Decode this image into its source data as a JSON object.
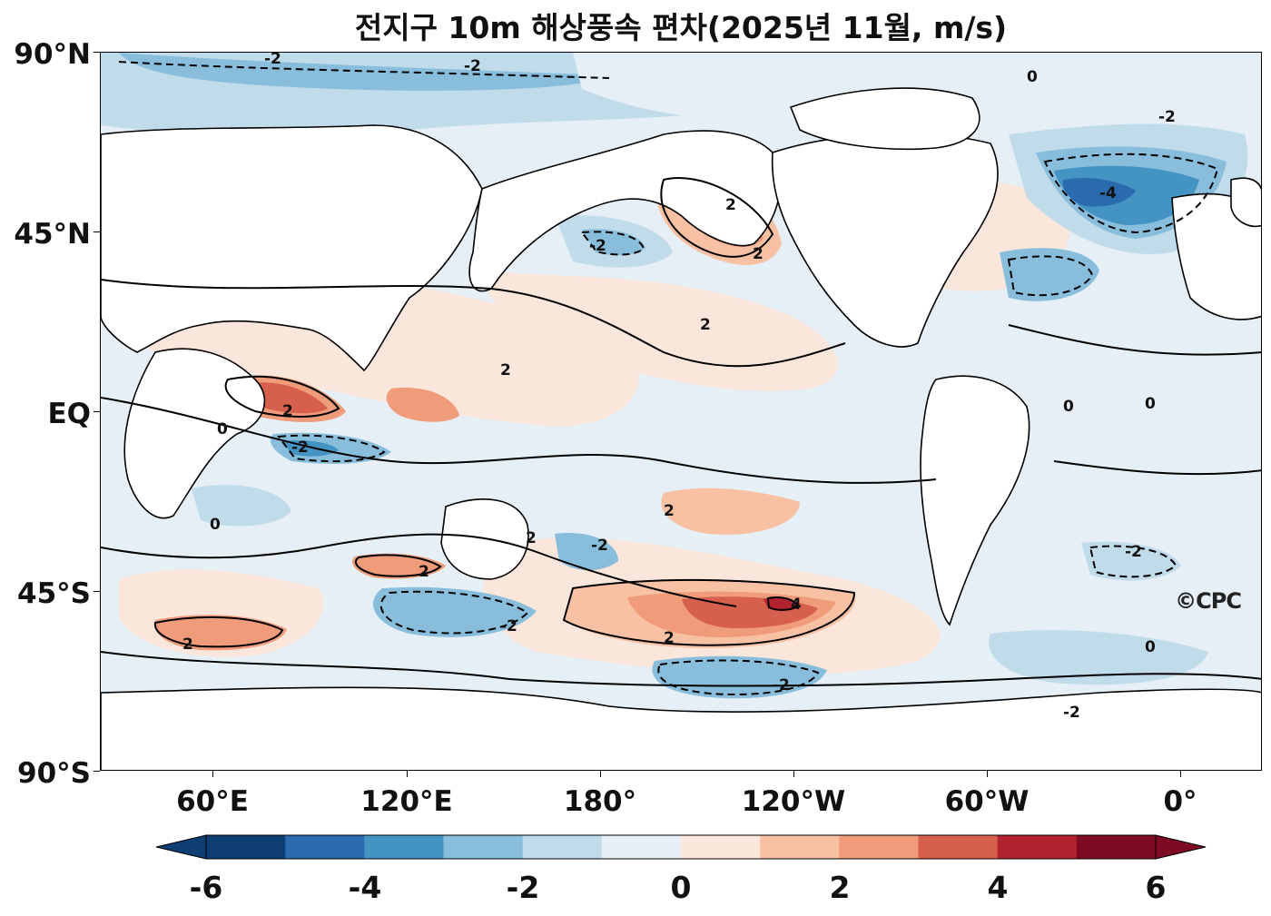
{
  "title": "전지구 10m 해상풍속 편차(2025년 11월, m/s)",
  "credit": "©CPC",
  "map": {
    "lat_ticks": [
      "90°N",
      "45°N",
      "EQ",
      "45°S",
      "90°S"
    ],
    "lon_ticks": [
      "60°E",
      "120°E",
      "180°",
      "120°W",
      "60°W",
      "0°"
    ],
    "contour_labels": [
      "-2",
      "0",
      "2",
      "4",
      "-4"
    ]
  },
  "colorbar": {
    "tick_labels": [
      "-6",
      "-4",
      "-2",
      "0",
      "2",
      "4",
      "6"
    ],
    "colors": [
      "#0e3e74",
      "#2a6aaf",
      "#4393c3",
      "#88bedc",
      "#c0dbea",
      "#e5eff5",
      "#fbe6dc",
      "#f8c1a3",
      "#f09b79",
      "#d6604d",
      "#b2222f",
      "#7e0a24"
    ],
    "extend": "both"
  }
}
